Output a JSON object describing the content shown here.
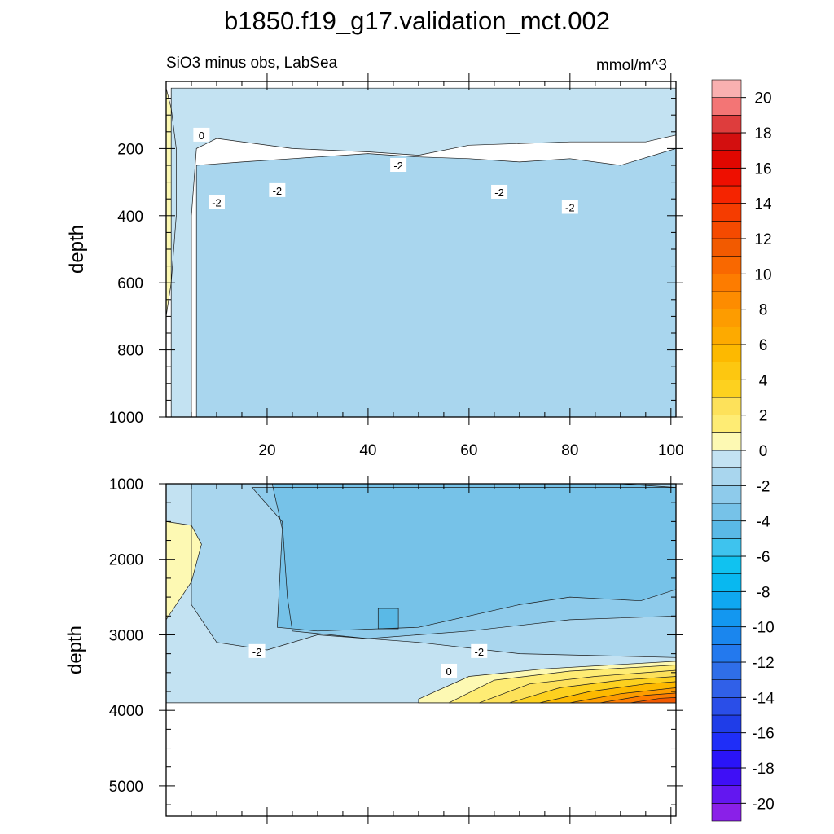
{
  "figure": {
    "title": "b1850.f19_g17.validation_mct.002",
    "subtitle_left": "SiO3 minus obs, LabSea",
    "units": "mmol/m^3"
  },
  "chart_data": [
    {
      "type": "heatmap",
      "name": "upper-panel",
      "description_var": "SiO3 minus obs",
      "xlim": [
        0,
        101
      ],
      "ylim": [
        1000,
        0
      ],
      "ylabel": "depth",
      "xticks": [
        20,
        40,
        60,
        80,
        100
      ],
      "yticks": [
        200,
        400,
        600,
        800,
        1000
      ],
      "contour_labels": [
        {
          "text": "0",
          "x": 7,
          "y": 160
        },
        {
          "text": "-2",
          "x": 10,
          "y": 360
        },
        {
          "text": "-2",
          "x": 22,
          "y": 325
        },
        {
          "text": "-2",
          "x": 46,
          "y": 250
        },
        {
          "text": "-2",
          "x": 66,
          "y": 330
        },
        {
          "text": "-2",
          "x": 80,
          "y": 375
        }
      ],
      "regions": [
        {
          "value": 0.5,
          "color": "#fdf9b3",
          "path": [
            [
              0,
              20
            ],
            [
              1,
              80
            ],
            [
              2,
              200
            ],
            [
              2,
              400
            ],
            [
              1,
              600
            ],
            [
              0,
              700
            ]
          ]
        },
        {
          "value": -0.5,
          "color": "#c3e2f2",
          "path": [
            [
              1,
              20
            ],
            [
              101,
              20
            ],
            [
              101,
              160
            ],
            [
              95,
              180
            ],
            [
              80,
              180
            ],
            [
              60,
              190
            ],
            [
              50,
              220
            ],
            [
              40,
              210
            ],
            [
              25,
              200
            ],
            [
              10,
              170
            ],
            [
              6,
              200
            ],
            [
              5,
              400
            ],
            [
              5,
              1000
            ],
            [
              1,
              1000
            ]
          ]
        },
        {
          "value": -1.5,
          "color": "#a9d6ee",
          "path": [
            [
              6,
              250
            ],
            [
              15,
              240
            ],
            [
              25,
              230
            ],
            [
              40,
              215
            ],
            [
              50,
              225
            ],
            [
              60,
              230
            ],
            [
              70,
              240
            ],
            [
              80,
              230
            ],
            [
              90,
              250
            ],
            [
              101,
              200
            ],
            [
              101,
              1000
            ],
            [
              6,
              1000
            ]
          ]
        }
      ]
    },
    {
      "type": "heatmap",
      "name": "lower-panel",
      "xlim": [
        0,
        101
      ],
      "ylim": [
        5400,
        1000
      ],
      "ylabel": "depth",
      "yticks": [
        1000,
        2000,
        3000,
        4000,
        5000
      ],
      "data_bottom_depth": 3900,
      "contour_labels": [
        {
          "text": "-2",
          "x": 18,
          "y": 3220
        },
        {
          "text": "-2",
          "x": 62,
          "y": 3220
        },
        {
          "text": "0",
          "x": 56,
          "y": 3480
        }
      ],
      "regions": [
        {
          "value": -0.5,
          "color": "#c3e2f2",
          "path": [
            [
              0,
              1000
            ],
            [
              101,
              1000
            ],
            [
              101,
              3900
            ],
            [
              0,
              3900
            ]
          ]
        },
        {
          "value": -1.5,
          "color": "#a9d6ee",
          "path": [
            [
              5,
              1000
            ],
            [
              101,
              1000
            ],
            [
              101,
              3300
            ],
            [
              70,
              3250
            ],
            [
              50,
              3100
            ],
            [
              30,
              3000
            ],
            [
              20,
              3200
            ],
            [
              10,
              3100
            ],
            [
              5,
              2600
            ]
          ]
        },
        {
          "value": -2.5,
          "color": "#8ecbeb",
          "path": [
            [
              17,
              1050
            ],
            [
              55,
              1050
            ],
            [
              101,
              1050
            ],
            [
              101,
              2750
            ],
            [
              80,
              2800
            ],
            [
              60,
              2950
            ],
            [
              40,
              3050
            ],
            [
              25,
              2950
            ],
            [
              24,
              2500
            ],
            [
              23,
              1500
            ]
          ]
        },
        {
          "value": -3.5,
          "color": "#76c2e8",
          "path": [
            [
              21,
              1000
            ],
            [
              55,
              1000
            ],
            [
              90,
              1000
            ],
            [
              101,
              1050
            ],
            [
              101,
              2400
            ],
            [
              94,
              2550
            ],
            [
              80,
              2500
            ],
            [
              70,
              2600
            ],
            [
              50,
              2900
            ],
            [
              30,
              2950
            ],
            [
              22,
              2900
            ],
            [
              23,
              1600
            ]
          ]
        },
        {
          "value": -4.5,
          "color": "#5ab9e6",
          "path": [
            [
              42,
              2650
            ],
            [
              46,
              2650
            ],
            [
              46,
              2920
            ],
            [
              42,
              2920
            ]
          ]
        },
        {
          "value": 0.5,
          "color": "#fdf9b3",
          "path": [
            [
              0,
              1500
            ],
            [
              5,
              1550
            ],
            [
              7,
              1800
            ],
            [
              5,
              2300
            ],
            [
              0,
              2800
            ]
          ]
        },
        {
          "value": 0.5,
          "color": "#fdf9b3",
          "path": [
            [
              50,
              3850
            ],
            [
              60,
              3550
            ],
            [
              75,
              3450
            ],
            [
              101,
              3350
            ],
            [
              101,
              3900
            ],
            [
              50,
              3900
            ]
          ]
        },
        {
          "value": 1.5,
          "color": "#feec74",
          "path": [
            [
              56,
              3900
            ],
            [
              65,
              3600
            ],
            [
              80,
              3480
            ],
            [
              101,
              3400
            ],
            [
              101,
              3900
            ]
          ]
        },
        {
          "value": 2.5,
          "color": "#fde15a",
          "path": [
            [
              62,
              3900
            ],
            [
              72,
              3650
            ],
            [
              85,
              3550
            ],
            [
              101,
              3470
            ],
            [
              101,
              3900
            ]
          ]
        },
        {
          "value": 3.5,
          "color": "#fdd11f",
          "path": [
            [
              68,
              3900
            ],
            [
              78,
              3700
            ],
            [
              90,
              3600
            ],
            [
              101,
              3550
            ],
            [
              101,
              3900
            ]
          ]
        },
        {
          "value": 4.5,
          "color": "#fdb900",
          "path": [
            [
              74,
              3900
            ],
            [
              84,
              3750
            ],
            [
              95,
              3650
            ],
            [
              101,
              3620
            ],
            [
              101,
              3900
            ]
          ]
        },
        {
          "value": 6.0,
          "color": "#fd9c00",
          "path": [
            [
              80,
              3900
            ],
            [
              90,
              3780
            ],
            [
              101,
              3700
            ],
            [
              101,
              3900
            ]
          ]
        },
        {
          "value": 8.0,
          "color": "#fd7c00",
          "path": [
            [
              86,
              3900
            ],
            [
              95,
              3800
            ],
            [
              101,
              3770
            ],
            [
              101,
              3900
            ]
          ]
        },
        {
          "value": 10.0,
          "color": "#f25a00",
          "path": [
            [
              92,
              3900
            ],
            [
              98,
              3840
            ],
            [
              101,
              3830
            ],
            [
              101,
              3900
            ]
          ]
        }
      ]
    },
    {
      "type": "colorbar",
      "name": "colorbar",
      "levels": [
        -20,
        -19,
        -18,
        -17,
        -16,
        -15,
        -14,
        -13,
        -12,
        -11,
        -10,
        -9,
        -8,
        -7,
        -6,
        -5,
        -4,
        -3,
        -2,
        -1,
        0,
        1,
        2,
        3,
        4,
        5,
        6,
        7,
        8,
        9,
        10,
        11,
        12,
        13,
        14,
        15,
        16,
        17,
        18,
        19,
        20
      ],
      "colors": [
        "#8a20e8",
        "#6317f0",
        "#3f0ff6",
        "#2a14f8",
        "#1f2ef8",
        "#1f3de8",
        "#2a4ee8",
        "#3060e8",
        "#2f6ee8",
        "#2379ee",
        "#1a86ee",
        "#1397f0",
        "#0fa8f0",
        "#08b8f0",
        "#10c2f0",
        "#3ec3ee",
        "#5ab9e6",
        "#76c2e8",
        "#8ecbeb",
        "#a9d6ee",
        "#c3e2f2",
        "#fdf9b3",
        "#feec74",
        "#fde15a",
        "#fdd11f",
        "#fdc710",
        "#fdb900",
        "#fdaa00",
        "#fd9c00",
        "#fd8c00",
        "#fd7c00",
        "#f96800",
        "#f25a00",
        "#f54a00",
        "#f53c00",
        "#f52400",
        "#ee0f00",
        "#e00700",
        "#d30f0f",
        "#de3d3d",
        "#f37575",
        "#f9b0b0"
      ],
      "tick_labels": [
        "20",
        "18",
        "16",
        "14",
        "12",
        "10",
        "8",
        "6",
        "4",
        "2",
        "0",
        "-2",
        "-4",
        "-6",
        "-8",
        "-10",
        "-12",
        "-14",
        "-16",
        "-18",
        "-20"
      ]
    }
  ]
}
